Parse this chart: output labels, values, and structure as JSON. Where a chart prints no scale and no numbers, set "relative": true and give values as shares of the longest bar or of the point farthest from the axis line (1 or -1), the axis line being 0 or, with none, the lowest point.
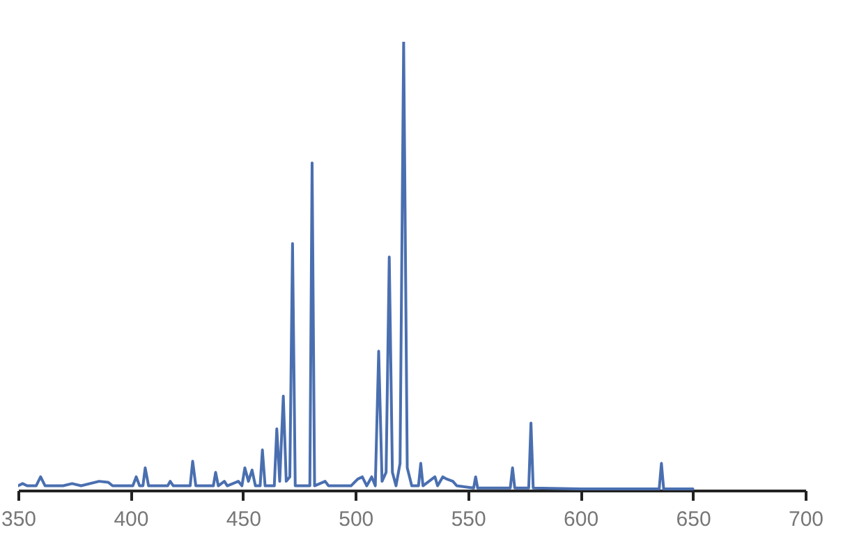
{
  "chart_data": {
    "type": "line",
    "relative": true,
    "xlim": [
      350,
      700
    ],
    "xticks": [
      350,
      400,
      450,
      500,
      550,
      600,
      650,
      700
    ],
    "marker": "none",
    "line_style": "solid",
    "x": [
      350,
      352,
      354,
      358,
      360,
      362,
      370,
      374,
      378,
      386,
      390,
      392,
      401,
      402.5,
      404,
      405.5,
      406.5,
      408,
      416.5,
      417.6,
      419,
      426.5,
      427.6,
      429,
      436.8,
      437.8,
      439,
      441.7,
      443,
      447.9,
      449.5,
      450.8,
      452.4,
      454,
      455.5,
      457.6,
      458.6,
      459.8,
      463.9,
      465,
      466.3,
      467.9,
      469.2,
      470.8,
      472,
      473.2,
      479.7,
      480.7,
      481.8,
      486.5,
      488,
      498,
      501,
      503,
      505,
      507.2,
      508.8,
      510.3,
      511.8,
      513.6,
      515,
      516.4,
      518,
      519.8,
      521.4,
      523,
      525,
      528,
      529,
      530,
      535.3,
      536.5,
      538.8,
      540.6,
      543.3,
      545,
      552.5,
      553.4,
      554.3,
      568.8,
      569.8,
      570.8,
      577,
      578,
      579,
      600,
      635,
      636,
      637,
      650
    ],
    "series": [
      {
        "color": "#4a6fb0",
        "values": [
          0.01,
          0.015,
          0.01,
          0.01,
          0.03,
          0.01,
          0.01,
          0.015,
          0.01,
          0.02,
          0.018,
          0.01,
          0.01,
          0.03,
          0.01,
          0.01,
          0.05,
          0.01,
          0.01,
          0.02,
          0.01,
          0.01,
          0.065,
          0.01,
          0.01,
          0.04,
          0.01,
          0.02,
          0.01,
          0.02,
          0.01,
          0.05,
          0.02,
          0.045,
          0.01,
          0.01,
          0.09,
          0.01,
          0.01,
          0.137,
          0.02,
          0.21,
          0.02,
          0.03,
          0.55,
          0.01,
          0.01,
          0.73,
          0.01,
          0.02,
          0.01,
          0.01,
          0.025,
          0.03,
          0.01,
          0.03,
          0.01,
          0.31,
          0.02,
          0.04,
          0.52,
          0.04,
          0.01,
          0.06,
          1.0,
          0.05,
          0.01,
          0.01,
          0.06,
          0.01,
          0.03,
          0.01,
          0.03,
          0.025,
          0.02,
          0.01,
          0.005,
          0.03,
          0.005,
          0.005,
          0.05,
          0.005,
          0.005,
          0.15,
          0.005,
          0.003,
          0.003,
          0.06,
          0.003,
          0.003
        ]
      }
    ]
  }
}
